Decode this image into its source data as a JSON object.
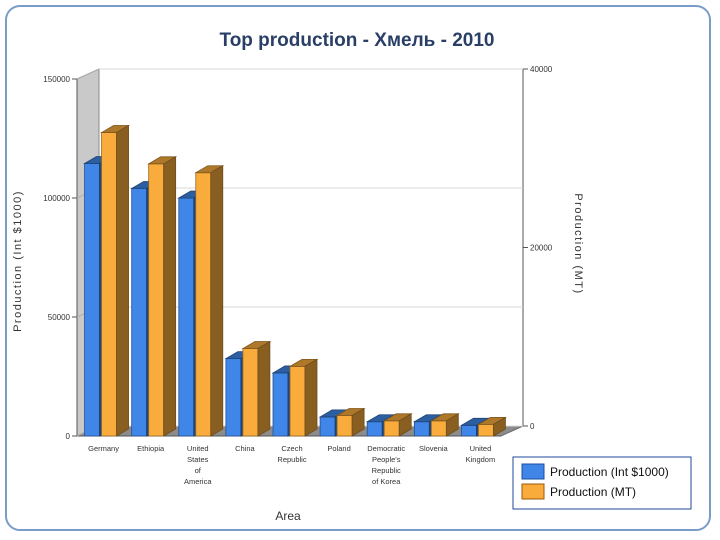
{
  "chart_data": {
    "type": "bar",
    "title": "Top production - Хмель - 2010",
    "xlabel": "Area",
    "ylabel_left": "Production (Int $1000)",
    "ylabel_right": "Production (MT)",
    "ylim_left": [
      0,
      150000
    ],
    "ylim_right": [
      0,
      40000
    ],
    "yticks_left": [
      "0",
      "50000",
      "100000",
      "150000"
    ],
    "yticks_right": [
      "0",
      "20000",
      "40000"
    ],
    "categories": [
      [
        "Germany"
      ],
      [
        "Ethiopia"
      ],
      [
        "United",
        "States",
        "of",
        "America"
      ],
      [
        "China"
      ],
      [
        "Czech",
        "Republic"
      ],
      [
        "Poland"
      ],
      [
        "Democratic",
        "People's",
        "Republic",
        "of Korea"
      ],
      [
        "Slovenia"
      ],
      [
        "United",
        "Kingdom"
      ]
    ],
    "series": [
      {
        "name": "Production (Int $1000)",
        "axis": "left",
        "color": "#3f86e8",
        "values": [
          114500,
          104000,
          100000,
          32500,
          26500,
          8000,
          6000,
          6000,
          4500
        ]
      },
      {
        "name": "Production (MT)",
        "axis": "right",
        "color": "#f9ab3c",
        "values": [
          34000,
          30500,
          29500,
          9800,
          7800,
          2300,
          1700,
          1700,
          1300
        ]
      }
    ],
    "legend": "bottom-right",
    "grid": true
  }
}
